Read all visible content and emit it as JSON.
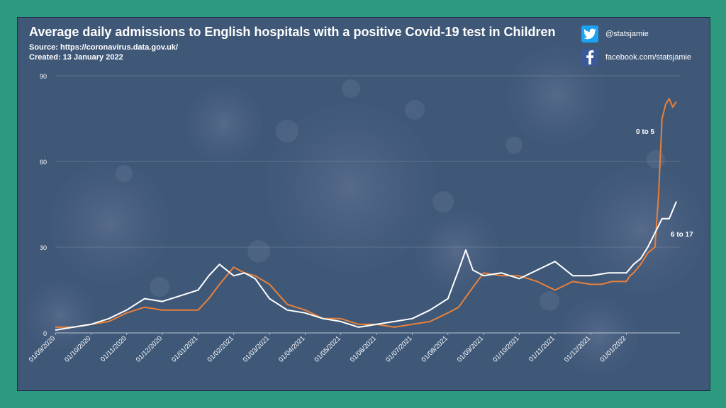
{
  "header": {
    "title": "Average daily admissions to English hospitals with a positive Covid-19 test in Children",
    "source": "Source: https://coronavirus.data.gov.uk/",
    "created": "Created: 13 January 2022"
  },
  "social": {
    "twitter_icon": "twitter-bird-icon",
    "twitter": "@statsjamie",
    "facebook_icon": "facebook-f-icon",
    "facebook": "facebook.com/statsjamie"
  },
  "colors": {
    "background_outer": "#2d9a80",
    "plot_background": "#3f5878",
    "series_0_5": "#e8803a",
    "series_6_17": "#ffffff",
    "gridline": "#a9b4c6"
  },
  "chart_data": {
    "type": "line",
    "title": "Average daily admissions to English hospitals with a positive Covid-19 test in Children",
    "xlabel": "",
    "ylabel": "",
    "ylim": [
      0,
      90
    ],
    "yticks": [
      0,
      30,
      60,
      90
    ],
    "grid": "horizontal",
    "x_tick_labels": [
      "01/09/2020",
      "01/10/2020",
      "01/11/2020",
      "01/12/2020",
      "01/01/2021",
      "01/02/2021",
      "01/03/2021",
      "01/04/2021",
      "01/05/2021",
      "01/06/2021",
      "01/07/2021",
      "01/08/2021",
      "01/09/2021",
      "01/10/2021",
      "01/11/2021",
      "01/12/2021",
      "01/01/2022"
    ],
    "x_units": "months since 01/09/2020",
    "series": [
      {
        "name": "0 to 5",
        "label": "0 to 5",
        "x": [
          0,
          0.5,
          1,
          1.5,
          2,
          2.5,
          3,
          3.5,
          4,
          4.3,
          4.6,
          5,
          5.3,
          5.6,
          6,
          6.5,
          7,
          7.5,
          8,
          8.5,
          9,
          9.5,
          10,
          10.5,
          11,
          11.3,
          11.7,
          12,
          12.5,
          13,
          13.5,
          14,
          14.5,
          15,
          15.3,
          15.6,
          16,
          16.1,
          16.2,
          16.4,
          16.6,
          16.8,
          16.9,
          17,
          17.1,
          17.2,
          17.3,
          17.4
        ],
        "values": [
          2,
          2,
          3,
          4,
          7,
          9,
          8,
          8,
          8,
          12,
          17,
          23,
          21,
          20,
          17,
          10,
          8,
          5,
          5,
          3,
          3,
          2,
          3,
          4,
          7,
          9,
          16,
          21,
          20,
          20,
          18,
          15,
          18,
          17,
          17,
          18,
          18,
          20,
          21,
          24,
          28,
          30,
          48,
          75,
          80,
          82,
          79,
          81
        ]
      },
      {
        "name": "6 to 17",
        "label": "6 to 17",
        "x": [
          0,
          0.5,
          1,
          1.5,
          2,
          2.5,
          3,
          3.5,
          4,
          4.3,
          4.6,
          5,
          5.3,
          5.6,
          6,
          6.5,
          7,
          7.5,
          8,
          8.5,
          9,
          9.5,
          10,
          10.5,
          11,
          11.3,
          11.5,
          11.7,
          12,
          12.5,
          13,
          13.5,
          14,
          14.5,
          15,
          15.5,
          16,
          16.2,
          16.4,
          16.6,
          16.8,
          17,
          17.2,
          17.4
        ],
        "values": [
          1,
          2,
          3,
          5,
          8,
          12,
          11,
          13,
          15,
          20,
          24,
          20,
          21,
          19,
          12,
          8,
          7,
          5,
          4,
          2,
          3,
          4,
          5,
          8,
          12,
          22,
          29,
          22,
          20,
          21,
          19,
          22,
          25,
          20,
          20,
          21,
          21,
          24,
          26,
          30,
          35,
          40,
          40,
          46
        ]
      }
    ]
  }
}
